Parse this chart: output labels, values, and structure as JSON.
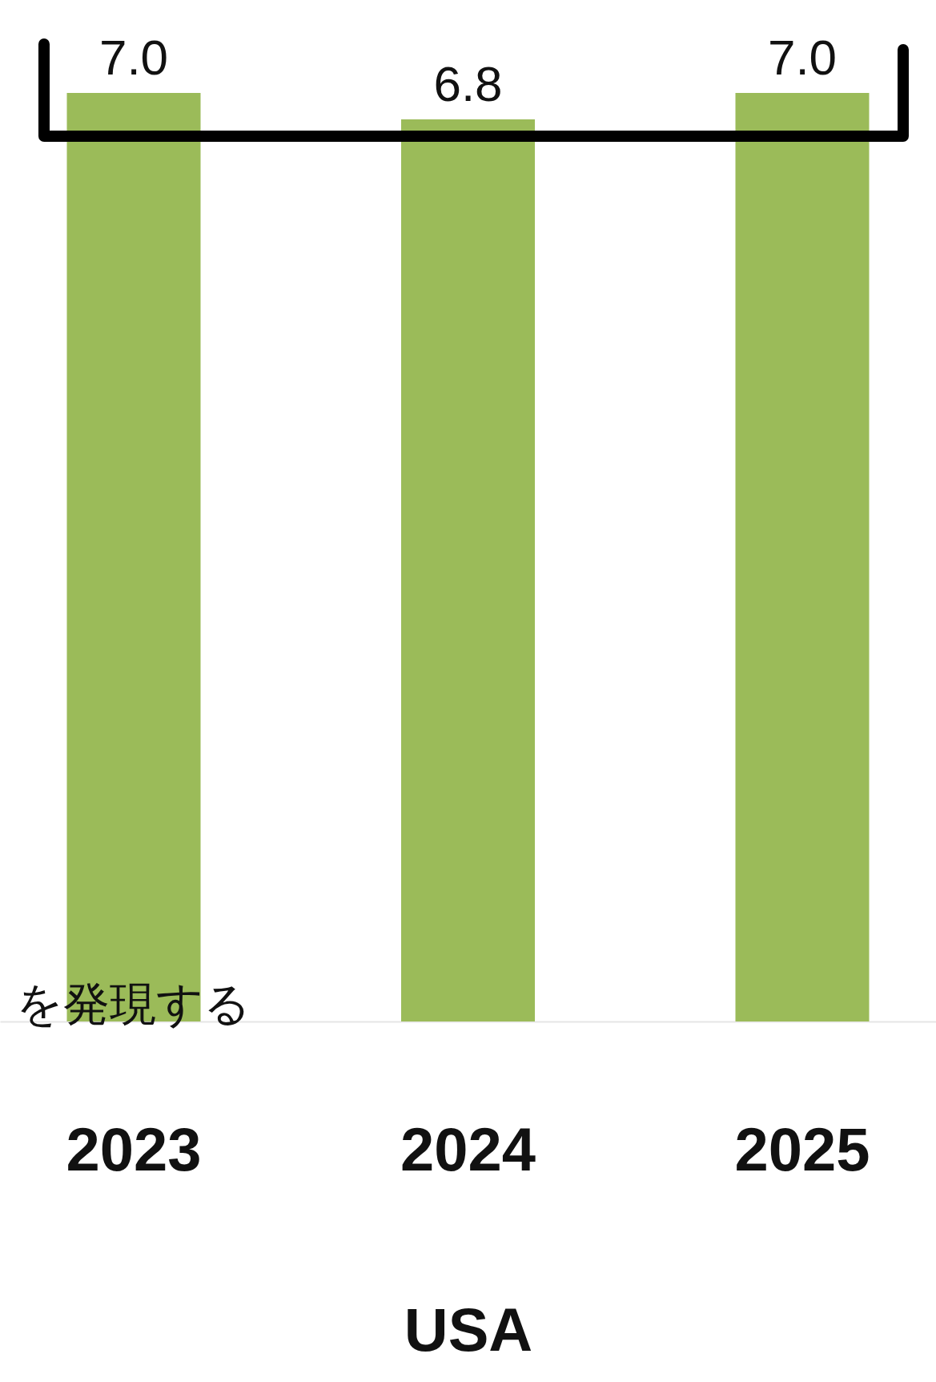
{
  "chart_data": {
    "type": "bar",
    "xlabel": "USA",
    "categories": [
      "2023",
      "2024",
      "2025"
    ],
    "values": [
      7.0,
      6.8,
      7.0
    ],
    "color": "#9bbb59",
    "value_labels": [
      "7.0",
      "6.8",
      "7.0"
    ],
    "ylim": [
      0,
      7.7
    ],
    "tick_labels": "x",
    "grid": false,
    "annotations": [
      "を発現する"
    ]
  }
}
